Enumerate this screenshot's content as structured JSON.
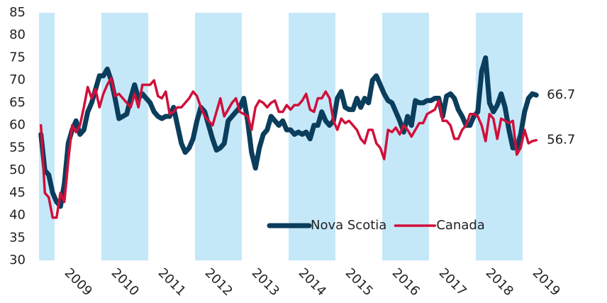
{
  "chart_data": {
    "type": "line",
    "categories": [
      null,
      null,
      null,
      null,
      "2009",
      null,
      null,
      null,
      null,
      null,
      null,
      null,
      null,
      null,
      null,
      null,
      "2010",
      null,
      null,
      null,
      null,
      null,
      null,
      null,
      null,
      null,
      null,
      null,
      "2011",
      null,
      null,
      null,
      null,
      null,
      null,
      null,
      null,
      null,
      null,
      null,
      "2012",
      null,
      null,
      null,
      null,
      null,
      null,
      null,
      null,
      null,
      null,
      null,
      "2013",
      null,
      null,
      null,
      null,
      null,
      null,
      null,
      null,
      null,
      null,
      null,
      "2014",
      null,
      null,
      null,
      null,
      null,
      null,
      null,
      null,
      null,
      null,
      null,
      "2015",
      null,
      null,
      null,
      null,
      null,
      null,
      null,
      null,
      null,
      null,
      null,
      "2016",
      null,
      null,
      null,
      null,
      null,
      null,
      null,
      null,
      null,
      null,
      null,
      "2017",
      null,
      null,
      null,
      null,
      null,
      null,
      null,
      null,
      null,
      null,
      null,
      "2018",
      null,
      null,
      null,
      null,
      null,
      null,
      null,
      null,
      null,
      null,
      null,
      "2019",
      null,
      null,
      null
    ],
    "series": [
      {
        "name": "Nova Scotia",
        "color": "#0b3d5c",
        "values": [
          58,
          50,
          49,
          45,
          43,
          42,
          47,
          56,
          59,
          61,
          58,
          59,
          63,
          65,
          68,
          71,
          71,
          72.5,
          70,
          66,
          61.5,
          62,
          62.5,
          66,
          69,
          66,
          67,
          66,
          65,
          63,
          62,
          61.5,
          62,
          62,
          64,
          60,
          56,
          54,
          55,
          57,
          61,
          64,
          63,
          60,
          57,
          54.5,
          55,
          56,
          61,
          62,
          63,
          64,
          66,
          61,
          54,
          50.5,
          55,
          58,
          59,
          62,
          61,
          60,
          61,
          59,
          59,
          58,
          58.5,
          58,
          58.5,
          57,
          60,
          60,
          63,
          61,
          60,
          61,
          66,
          67.5,
          64,
          63.5,
          63.5,
          66,
          64,
          66,
          65,
          70,
          71,
          69,
          67,
          65.5,
          65,
          63,
          61,
          58.5,
          62,
          60,
          65.5,
          65,
          65,
          65.5,
          65.5,
          66,
          66,
          62,
          66.5,
          67,
          66,
          63.5,
          62,
          60,
          60,
          62,
          63,
          72,
          75,
          65,
          63,
          64.5,
          67,
          64,
          59,
          55,
          55,
          58,
          63,
          66,
          67,
          66.7
        ]
      },
      {
        "name": "Canada",
        "color": "#d0103a",
        "values": [
          60,
          45,
          44,
          39.5,
          39.5,
          45,
          43,
          52,
          60,
          58.5,
          60,
          64,
          68.5,
          66,
          68,
          64,
          67,
          69,
          70.5,
          66.5,
          67,
          66,
          65,
          64,
          67,
          64,
          69,
          69,
          69,
          70,
          66.5,
          66,
          67.5,
          62.5,
          63,
          64,
          64,
          65,
          66,
          67.5,
          66.5,
          64,
          62,
          61,
          60,
          63,
          66,
          62,
          63.5,
          65,
          66,
          63,
          62.5,
          62,
          59,
          64,
          65.5,
          65,
          64,
          65,
          65.5,
          63,
          63,
          64.5,
          63.5,
          64.5,
          64.5,
          65.5,
          67,
          63.5,
          63,
          66,
          66,
          67.5,
          66,
          61,
          59,
          61.5,
          60.5,
          61,
          60,
          59,
          57,
          56,
          59,
          59,
          56,
          55,
          52.5,
          59,
          58.5,
          59.5,
          58,
          60,
          59,
          57.5,
          59,
          60.5,
          60.5,
          62.5,
          63,
          63.5,
          65.5,
          61,
          61,
          60,
          57,
          57,
          59,
          60,
          62.5,
          62.5,
          62,
          60,
          56.5,
          62.5,
          61.5,
          57,
          61.5,
          61,
          60.5,
          61,
          53.5,
          55,
          59,
          56,
          56.5,
          56.7
        ]
      }
    ],
    "ylim": [
      30,
      85
    ],
    "yticks": [
      30,
      35,
      40,
      45,
      50,
      55,
      60,
      65,
      70,
      75,
      80,
      85
    ],
    "grid": false,
    "band_color": "#c5e8f9",
    "legend": "bottom-center",
    "end_labels": true
  }
}
